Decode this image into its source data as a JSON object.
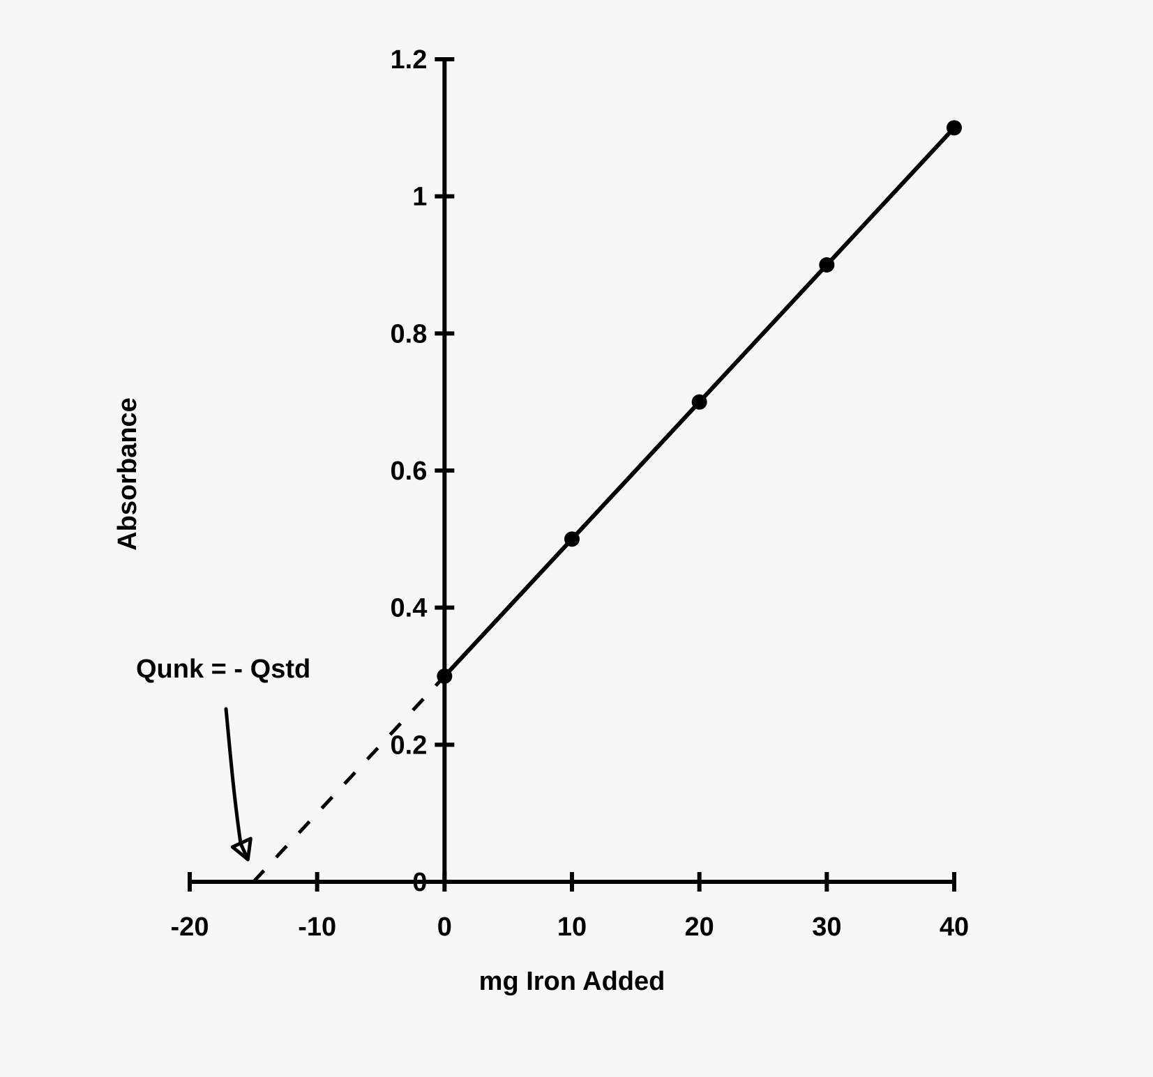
{
  "chart_data": {
    "type": "line",
    "title": "",
    "xlabel": "mg Iron Added",
    "ylabel": "Absorbance",
    "xlim": [
      -20,
      40
    ],
    "ylim": [
      0,
      1.2
    ],
    "x_ticks": [
      "-20",
      "-10",
      "0",
      "10",
      "20",
      "30",
      "40"
    ],
    "y_ticks": [
      "0",
      "0.2",
      "0.4",
      "0.6",
      "0.8",
      "1",
      "1.2"
    ],
    "grid": false,
    "legend": "none",
    "series": [
      {
        "x": [
          0,
          10,
          20,
          30,
          40
        ],
        "y": [
          0.3,
          0.5,
          0.7,
          0.9,
          1.1
        ],
        "style": "solid",
        "markers": true
      },
      {
        "x": [
          -15,
          0
        ],
        "y": [
          0,
          0.3
        ],
        "style": "dashed",
        "markers": false
      }
    ],
    "annotations": [
      {
        "text": "Qunk = - Qstd",
        "points_to_x": -15,
        "points_to_y": 0
      }
    ]
  },
  "colors": {
    "line": "#000000",
    "background": "#f7f7f7"
  }
}
